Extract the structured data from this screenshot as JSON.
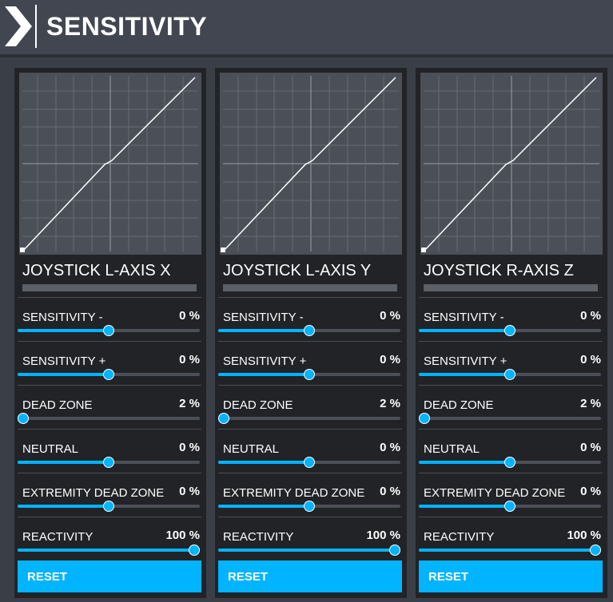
{
  "header": {
    "title": "SENSITIVITY",
    "icon": "chevron-right-icon"
  },
  "colors": {
    "accent": "#00b4ff",
    "panel": "#212327",
    "graph": "#4b4f57",
    "background": "#3a3f47"
  },
  "panels": [
    {
      "axis_name": "JOYSTICK L-AXIS X",
      "reset_label": "RESET",
      "settings": [
        {
          "label": "SENSITIVITY -",
          "value": "0 %",
          "position": 0.5
        },
        {
          "label": "SENSITIVITY +",
          "value": "0 %",
          "position": 0.5
        },
        {
          "label": "DEAD ZONE",
          "value": "2 %",
          "position": 0.02
        },
        {
          "label": "NEUTRAL",
          "value": "0 %",
          "position": 0.5
        },
        {
          "label": "EXTREMITY DEAD ZONE",
          "value": "0 %",
          "position": 0.5
        },
        {
          "label": "REACTIVITY",
          "value": "100 %",
          "position": 1.0
        }
      ]
    },
    {
      "axis_name": "JOYSTICK L-AXIS Y",
      "reset_label": "RESET",
      "settings": [
        {
          "label": "SENSITIVITY -",
          "value": "0 %",
          "position": 0.5
        },
        {
          "label": "SENSITIVITY +",
          "value": "0 %",
          "position": 0.5
        },
        {
          "label": "DEAD ZONE",
          "value": "2 %",
          "position": 0.02
        },
        {
          "label": "NEUTRAL",
          "value": "0 %",
          "position": 0.5
        },
        {
          "label": "EXTREMITY DEAD ZONE",
          "value": "0 %",
          "position": 0.5
        },
        {
          "label": "REACTIVITY",
          "value": "100 %",
          "position": 1.0
        }
      ]
    },
    {
      "axis_name": "JOYSTICK R-AXIS Z",
      "reset_label": "RESET",
      "settings": [
        {
          "label": "SENSITIVITY -",
          "value": "0 %",
          "position": 0.5
        },
        {
          "label": "SENSITIVITY +",
          "value": "0 %",
          "position": 0.5
        },
        {
          "label": "DEAD ZONE",
          "value": "2 %",
          "position": 0.02
        },
        {
          "label": "NEUTRAL",
          "value": "0 %",
          "position": 0.5
        },
        {
          "label": "EXTREMITY DEAD ZONE",
          "value": "0 %",
          "position": 0.5
        },
        {
          "label": "REACTIVITY",
          "value": "100 %",
          "position": 1.0
        }
      ]
    }
  ]
}
